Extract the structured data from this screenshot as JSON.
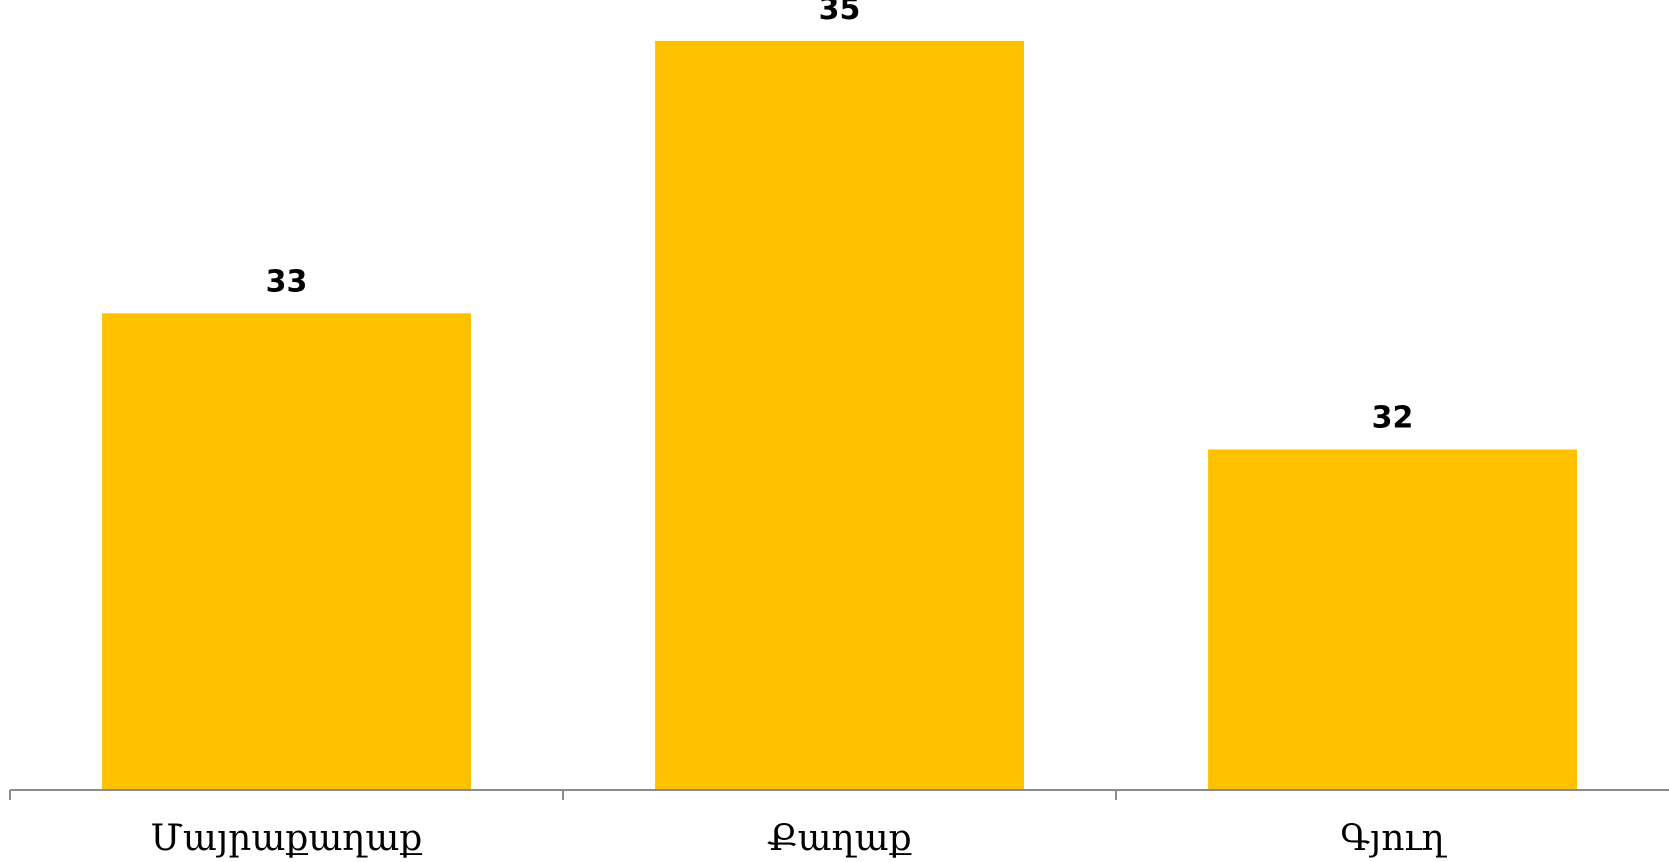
{
  "chart_data": {
    "type": "bar",
    "categories": [
      "Մայրաքաղաք",
      "Քաղաք",
      "Գյուղ"
    ],
    "values": [
      33,
      35,
      32
    ],
    "title": "",
    "xlabel": "",
    "ylabel": "",
    "ylim": [
      29.5,
      35.3
    ],
    "grid": false,
    "legend": "none",
    "bar_color": "#FFC000",
    "axis_color": "#8C8C8C"
  }
}
